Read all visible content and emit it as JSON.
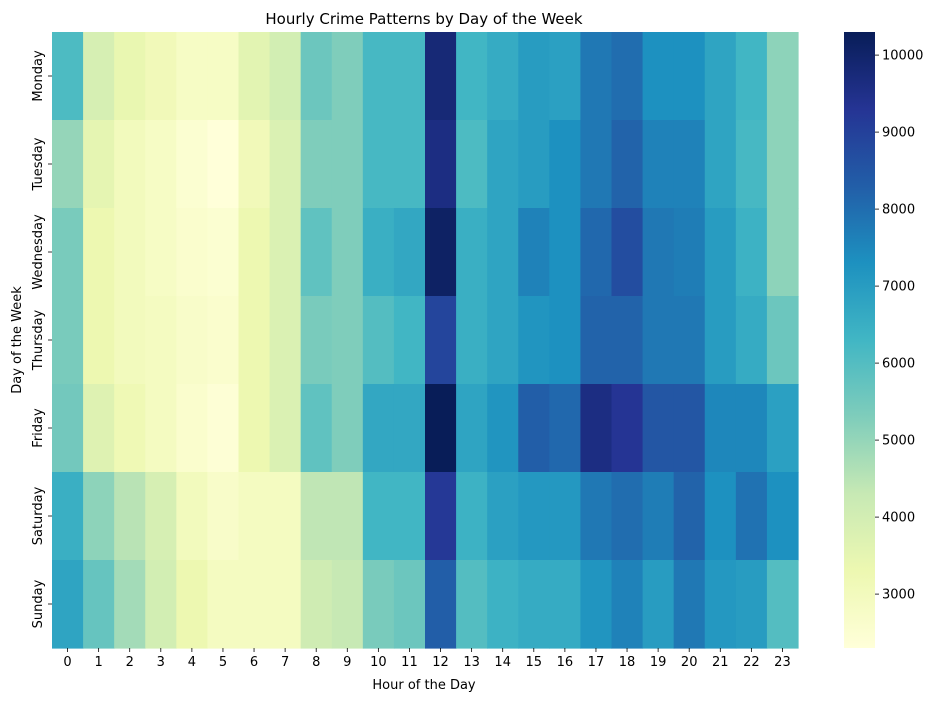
{
  "chart_data": {
    "type": "heatmap",
    "title": "Hourly Crime Patterns by Day of the Week",
    "xlabel": "Hour of the Day",
    "ylabel": "Day of the Week",
    "x": [
      "0",
      "1",
      "2",
      "3",
      "4",
      "5",
      "6",
      "7",
      "8",
      "9",
      "10",
      "11",
      "12",
      "13",
      "14",
      "15",
      "16",
      "17",
      "18",
      "19",
      "20",
      "21",
      "22",
      "23"
    ],
    "y": [
      "Monday",
      "Tuesday",
      "Wednesday",
      "Thursday",
      "Friday",
      "Saturday",
      "Sunday"
    ],
    "values": [
      [
        6100,
        3900,
        3400,
        3100,
        2800,
        2800,
        3600,
        4000,
        5600,
        5300,
        6200,
        6200,
        9800,
        6300,
        6600,
        7000,
        6900,
        7800,
        8000,
        7300,
        7300,
        6800,
        6300,
        5100
      ],
      [
        5000,
        3500,
        3000,
        2800,
        2500,
        2300,
        3100,
        3800,
        5300,
        5300,
        6200,
        6200,
        9600,
        6100,
        6800,
        7000,
        7300,
        7800,
        8200,
        7600,
        7600,
        6800,
        6200,
        5100
      ],
      [
        5400,
        3300,
        3000,
        2800,
        2600,
        2500,
        3300,
        3800,
        5800,
        5300,
        6500,
        6700,
        10100,
        6500,
        6800,
        7600,
        7300,
        8100,
        8700,
        7800,
        7700,
        7000,
        6400,
        5100
      ],
      [
        5400,
        3300,
        3000,
        2900,
        2700,
        2600,
        3300,
        3800,
        5400,
        5300,
        6000,
        6300,
        8900,
        6500,
        6800,
        7200,
        7300,
        8200,
        8200,
        7800,
        7800,
        7000,
        6600,
        5600
      ],
      [
        5500,
        3700,
        3200,
        2900,
        2600,
        2400,
        3300,
        3800,
        5800,
        5300,
        6700,
        6700,
        10300,
        6800,
        7200,
        8300,
        8100,
        9600,
        9300,
        8500,
        8500,
        7500,
        7500,
        6900
      ],
      [
        6500,
        5100,
        4500,
        3900,
        3000,
        2700,
        2900,
        2900,
        4400,
        4400,
        6300,
        6300,
        9200,
        6400,
        6900,
        7100,
        7100,
        7800,
        8000,
        7700,
        8200,
        7300,
        7900,
        7300
      ],
      [
        6800,
        5700,
        4800,
        4000,
        3300,
        2900,
        2900,
        2900,
        4100,
        4300,
        5400,
        5600,
        8300,
        6000,
        6400,
        6600,
        6600,
        7200,
        7600,
        7000,
        7800,
        7100,
        7000,
        6000
      ]
    ],
    "colorbar": {
      "min": 2300,
      "max": 10300,
      "ticks": [
        3000,
        4000,
        5000,
        6000,
        7000,
        8000,
        9000,
        10000
      ],
      "colormap": "YlGnBu"
    }
  }
}
